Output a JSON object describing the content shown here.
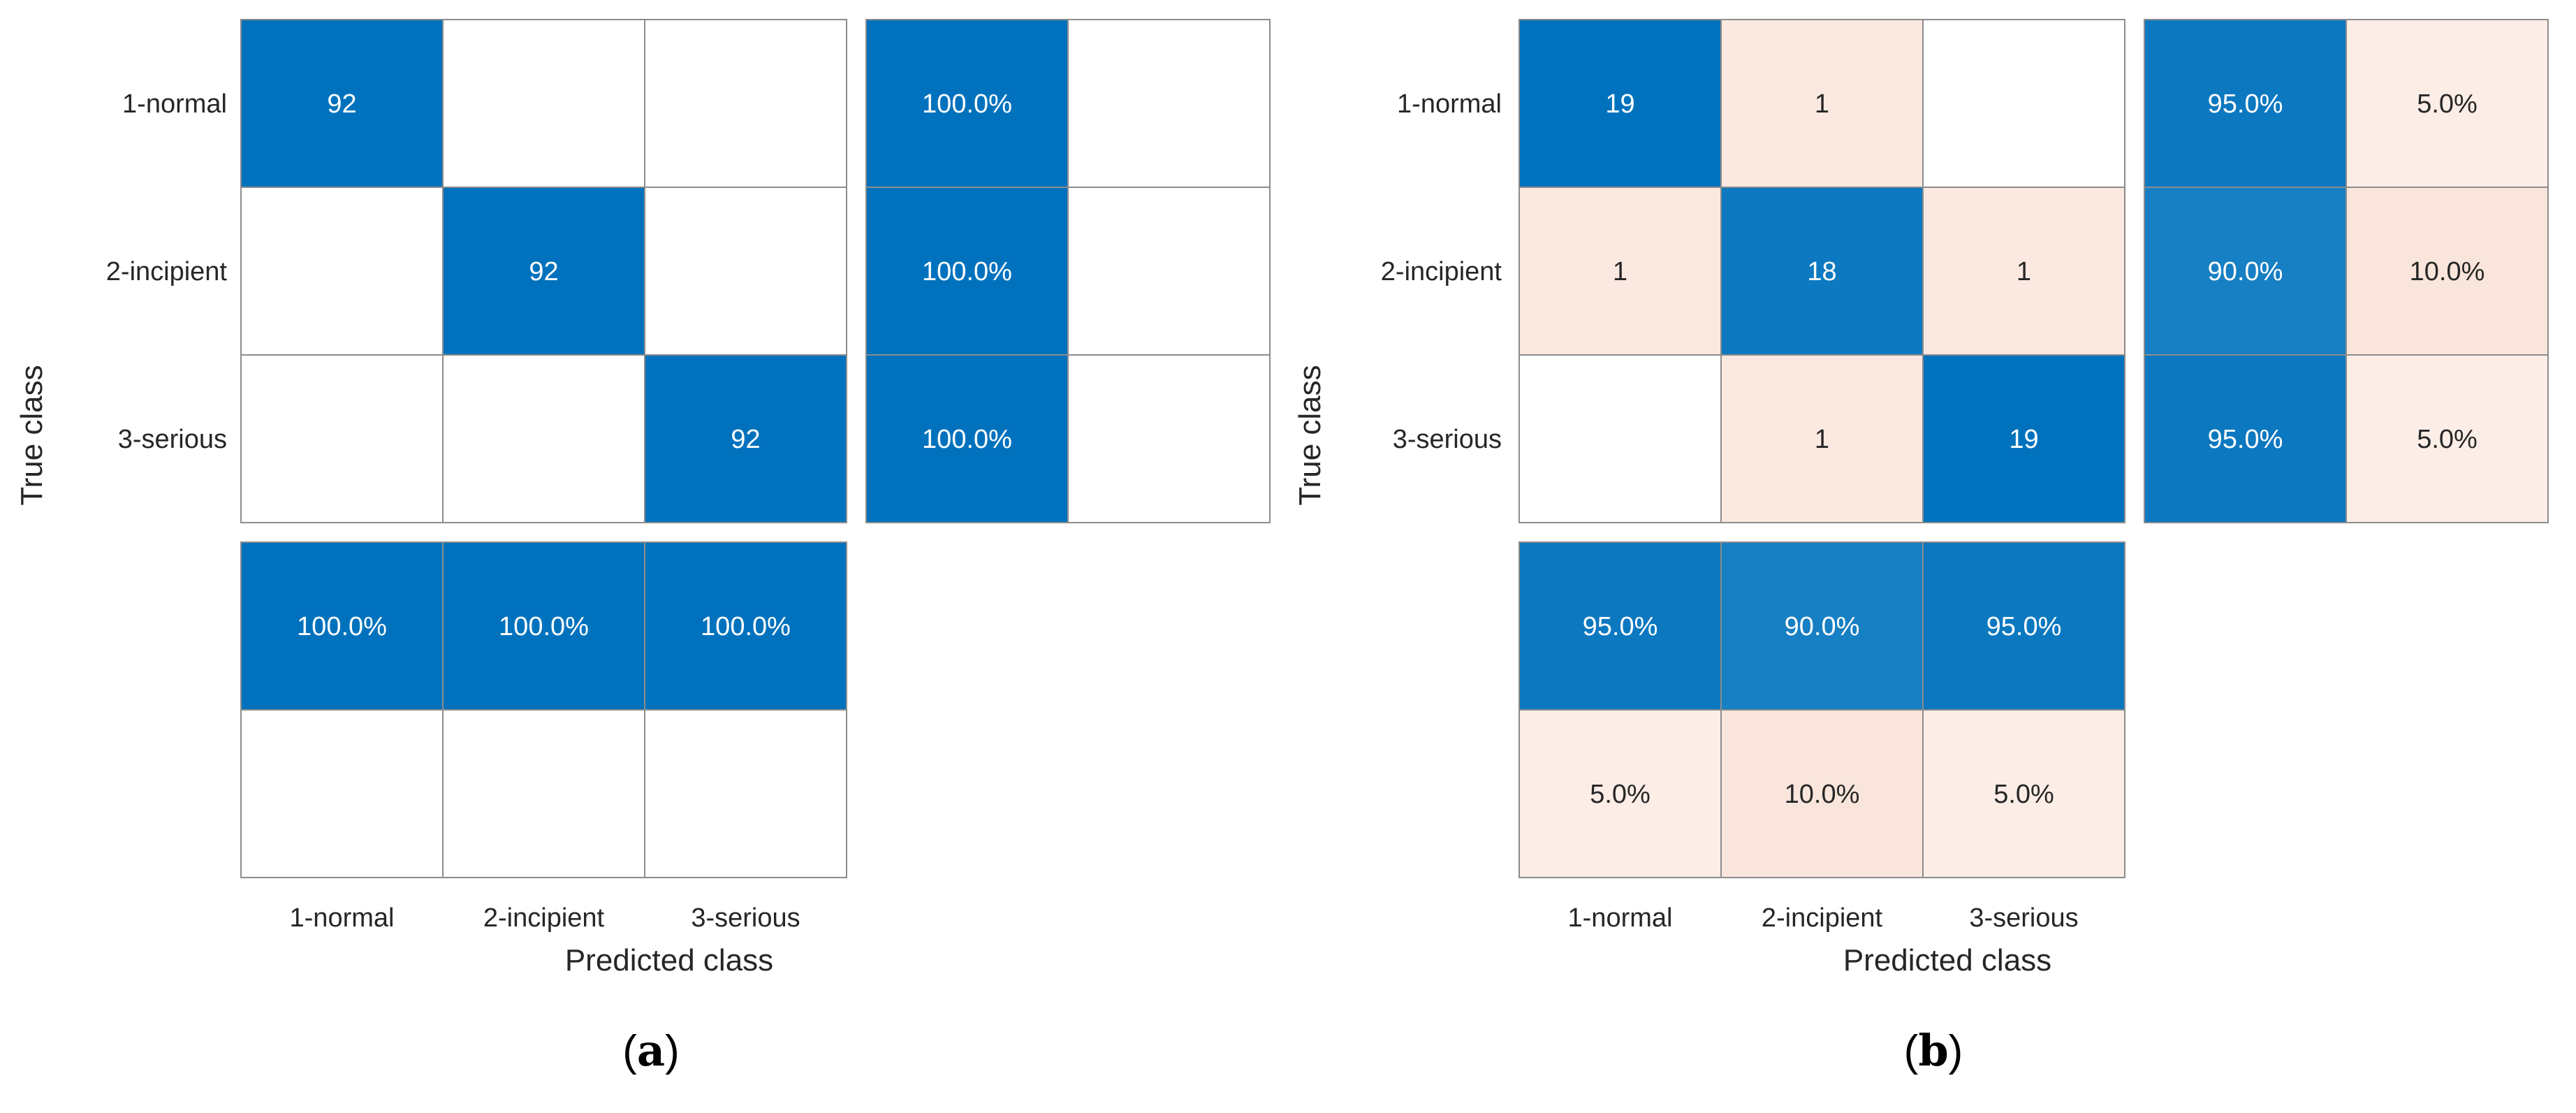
{
  "colors": {
    "primary": "#0072bd",
    "secondary": "#fdece6",
    "grid": "#8c8c8c",
    "empty": "#ffffff"
  },
  "chart_data": [
    {
      "type": "heatmap",
      "caption_letter": "a",
      "xlabel": "Predicted class",
      "ylabel": "True class",
      "classes": [
        "1-normal",
        "2-incipient",
        "3-serious"
      ],
      "matrix": [
        [
          92,
          0,
          0
        ],
        [
          0,
          92,
          0
        ],
        [
          0,
          0,
          92
        ]
      ],
      "row_summary": [
        [
          "100.0%",
          ""
        ],
        [
          "100.0%",
          ""
        ],
        [
          "100.0%",
          ""
        ]
      ],
      "row_summary_values": [
        [
          100.0,
          0.0
        ],
        [
          100.0,
          0.0
        ],
        [
          100.0,
          0.0
        ]
      ],
      "col_summary": [
        [
          "100.0%",
          "100.0%",
          "100.0%"
        ],
        [
          "",
          "",
          ""
        ]
      ],
      "col_summary_values": [
        [
          100.0,
          100.0,
          100.0
        ],
        [
          0.0,
          0.0,
          0.0
        ]
      ]
    },
    {
      "type": "heatmap",
      "caption_letter": "b",
      "xlabel": "Predicted class",
      "ylabel": "True class",
      "classes": [
        "1-normal",
        "2-incipient",
        "3-serious"
      ],
      "matrix": [
        [
          19,
          1,
          0
        ],
        [
          1,
          18,
          1
        ],
        [
          0,
          1,
          19
        ]
      ],
      "row_summary": [
        [
          "95.0%",
          "5.0%"
        ],
        [
          "90.0%",
          "10.0%"
        ],
        [
          "95.0%",
          "5.0%"
        ]
      ],
      "row_summary_values": [
        [
          95.0,
          5.0
        ],
        [
          90.0,
          10.0
        ],
        [
          95.0,
          5.0
        ]
      ],
      "col_summary": [
        [
          "95.0%",
          "90.0%",
          "95.0%"
        ],
        [
          "5.0%",
          "10.0%",
          "5.0%"
        ]
      ],
      "col_summary_values": [
        [
          95.0,
          90.0,
          95.0
        ],
        [
          5.0,
          10.0,
          5.0
        ]
      ]
    }
  ]
}
